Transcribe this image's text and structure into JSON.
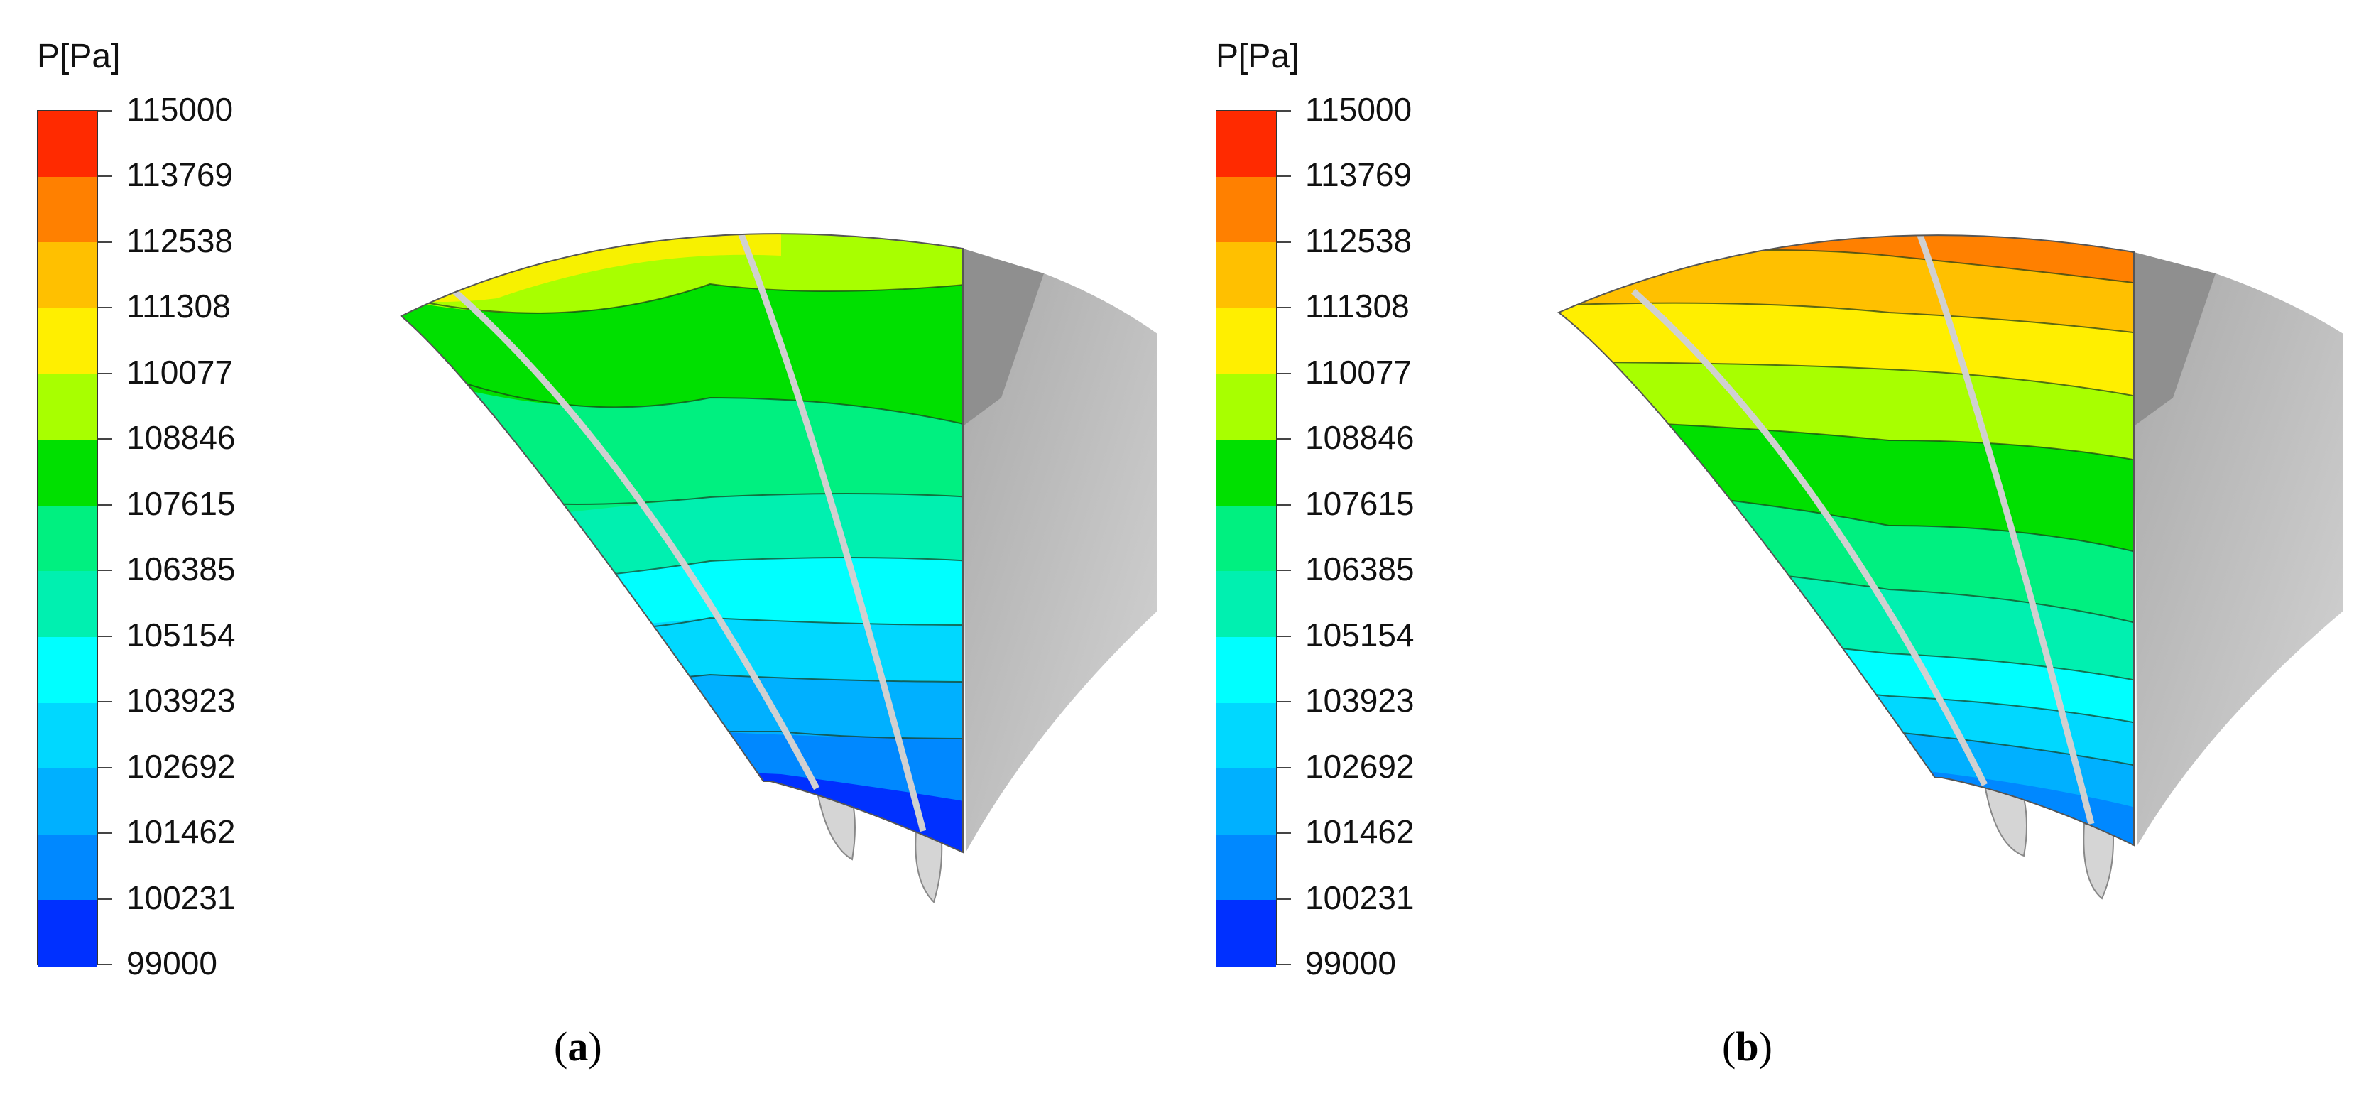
{
  "panels": [
    {
      "id": "a",
      "caption_open": "(",
      "caption_letter": "a",
      "caption_close": ")",
      "legend_title": "P[Pa]",
      "ticks": [
        "115000",
        "113769",
        "112538",
        "111308",
        "110077",
        "108846",
        "107615",
        "106385",
        "105154",
        "103923",
        "102692",
        "101462",
        "100231",
        "99000"
      ]
    },
    {
      "id": "b",
      "caption_open": "(",
      "caption_letter": "b",
      "caption_close": ")",
      "legend_title": "P[Pa]",
      "ticks": [
        "115000",
        "113769",
        "112538",
        "111308",
        "110077",
        "108846",
        "107615",
        "106385",
        "105154",
        "103923",
        "102692",
        "101462",
        "100231",
        "99000"
      ]
    }
  ],
  "colors": {
    "bands": [
      "#ff2a00",
      "#ff8000",
      "#ffc000",
      "#ffef00",
      "#a8ff00",
      "#00e000",
      "#00f080",
      "#00f0b0",
      "#00ffff",
      "#00d8ff",
      "#00b0ff",
      "#0088ff",
      "#0030ff"
    ],
    "hub": "#c6c6c6",
    "hub_dark": "#9a9a9a",
    "blade": "#d9d9d9",
    "contour_line": "#1a3a1a"
  }
}
